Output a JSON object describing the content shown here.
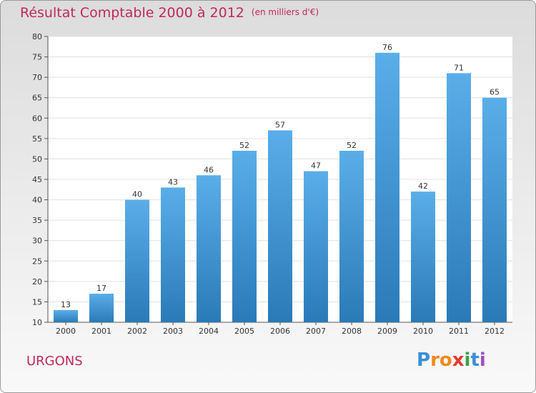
{
  "chart_data": {
    "type": "bar",
    "title": "Résultat Comptable 2000 à 2012",
    "subtitle": "(en milliers d'€)",
    "categories": [
      "2000",
      "2001",
      "2002",
      "2003",
      "2004",
      "2005",
      "2006",
      "2007",
      "2008",
      "2009",
      "2010",
      "2011",
      "2012"
    ],
    "values": [
      13,
      17,
      40,
      43,
      46,
      52,
      57,
      47,
      52,
      76,
      42,
      71,
      65
    ],
    "ylim": [
      10,
      80
    ],
    "yticks": [
      10,
      15,
      20,
      25,
      30,
      35,
      40,
      45,
      50,
      55,
      60,
      65,
      70,
      75,
      80
    ],
    "xlabel": "",
    "ylabel": "",
    "grid": true,
    "bar_color_top": "#5aaee8",
    "bar_color_bottom": "#2a7ab8"
  },
  "footer": {
    "place": "URGONS",
    "brand_letters": [
      "P",
      "r",
      "o",
      "x",
      "i",
      "t",
      "i"
    ],
    "brand_colors": [
      "#3b8fd6",
      "#f08a1c",
      "#f08a1c",
      "#e63a2e",
      "#3ba04a",
      "#3b8fd6",
      "#9b4fc7"
    ]
  },
  "colors": {
    "title": "#c0285c"
  }
}
